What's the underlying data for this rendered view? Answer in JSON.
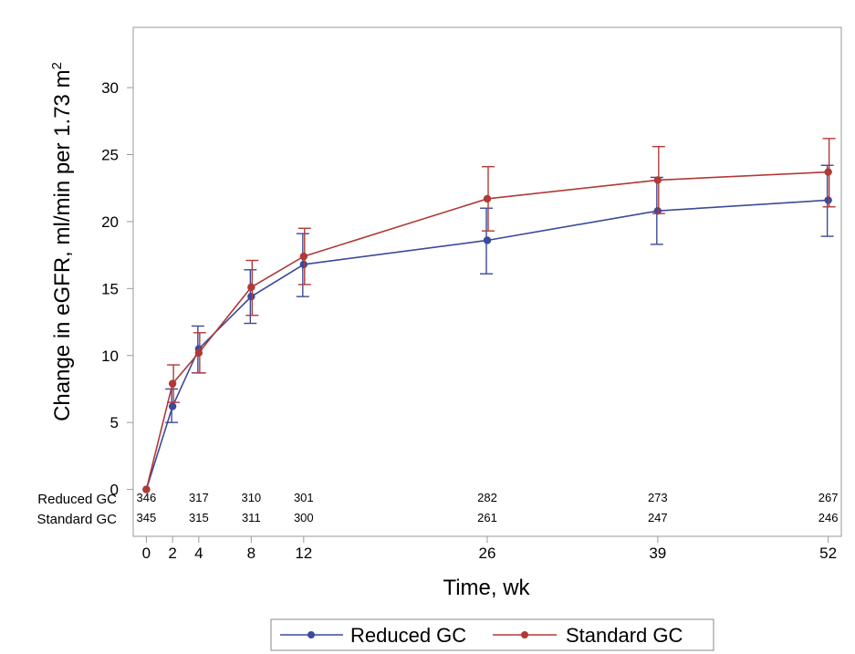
{
  "chart_data": {
    "type": "line",
    "title": "",
    "xlabel": "Time, wk",
    "ylabel": "Change in eGFR, ml/min per 1.73 m²",
    "ylabel_main": "Change in eGFR, ml/min per 1.73 m",
    "ylabel_sup": "2",
    "x": [
      0,
      2,
      4,
      8,
      12,
      26,
      39,
      52
    ],
    "xticks": [
      "0",
      "2",
      "4",
      "8",
      "12",
      "26",
      "39",
      "52"
    ],
    "xlim": [
      -1,
      53
    ],
    "ylim": [
      -3.5,
      34.5
    ],
    "yticks": [
      0,
      5,
      10,
      15,
      20,
      25,
      30
    ],
    "error_bars": "95% CI",
    "series": [
      {
        "name": "Reduced GC",
        "color": "#3b4a99",
        "values": [
          0,
          6.2,
          10.5,
          14.4,
          16.8,
          18.6,
          20.8,
          21.6
        ],
        "lower": [
          0,
          5.0,
          8.7,
          12.4,
          14.4,
          16.1,
          18.3,
          18.9
        ],
        "upper": [
          0,
          7.5,
          12.2,
          16.4,
          19.1,
          21.0,
          23.3,
          24.2
        ]
      },
      {
        "name": "Standard GC",
        "color": "#b03a35",
        "values": [
          0,
          7.9,
          10.2,
          15.1,
          17.4,
          21.7,
          23.1,
          23.7
        ],
        "lower": [
          0,
          6.5,
          8.7,
          13.0,
          15.3,
          19.3,
          20.6,
          21.1
        ],
        "upper": [
          0,
          9.3,
          11.7,
          17.1,
          19.5,
          24.1,
          25.6,
          26.2
        ]
      }
    ],
    "at_risk": [
      {
        "label": "Reduced GC",
        "counts": [
          "346",
          "317",
          "310",
          "301",
          "282",
          "273",
          "267"
        ]
      },
      {
        "label": "Standard GC",
        "counts": [
          "345",
          "315",
          "311",
          "300",
          "261",
          "247",
          "246"
        ]
      }
    ],
    "at_risk_weeks": [
      0,
      4,
      8,
      12,
      26,
      39,
      52
    ],
    "legend": [
      "Reduced GC",
      "Standard GC"
    ],
    "legend_position": "bottom-center",
    "grid": false
  }
}
